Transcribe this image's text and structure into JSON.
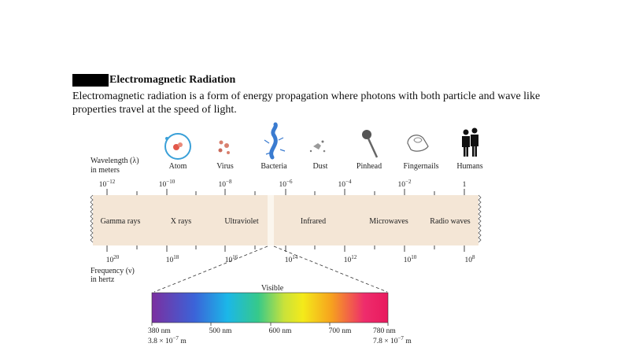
{
  "heading": "Electromagnetic Radiation",
  "description": "Electromagnetic radiation is a form of energy propagation where photons with both particle and wave like properties travel at the speed of light.",
  "wavelength_axis": {
    "label_line1": "Wavelength (λ)",
    "label_line2": "in meters",
    "objects": [
      "Atom",
      "Virus",
      "Bacteria",
      "Dust",
      "Pinhead",
      "Fingernails",
      "Humans"
    ],
    "ticks": [
      {
        "base": "10",
        "exp": "−12"
      },
      {
        "base": "10",
        "exp": "−10"
      },
      {
        "base": "10",
        "exp": "−8"
      },
      {
        "base": "10",
        "exp": "−6"
      },
      {
        "base": "10",
        "exp": "−4"
      },
      {
        "base": "10",
        "exp": "−2"
      },
      {
        "base": "1",
        "exp": ""
      }
    ]
  },
  "bands": [
    "Gamma rays",
    "X rays",
    "Ultraviolet",
    "Infrared",
    "Microwaves",
    "Radio waves"
  ],
  "frequency_axis": {
    "label_line1": "Frequency (ν)",
    "label_line2": "in hertz",
    "ticks": [
      {
        "base": "10",
        "exp": "20"
      },
      {
        "base": "10",
        "exp": "18"
      },
      {
        "base": "10",
        "exp": "16"
      },
      {
        "base": "10",
        "exp": "14"
      },
      {
        "base": "10",
        "exp": "12"
      },
      {
        "base": "10",
        "exp": "10"
      },
      {
        "base": "10",
        "exp": "8"
      }
    ]
  },
  "visible": {
    "label": "Visible",
    "ticks": [
      "380 nm",
      "500 nm",
      "600 nm",
      "700 nm",
      "780 nm"
    ],
    "left_sub": {
      "base": "3.8 × 10",
      "exp": "−7",
      "unit": " m"
    },
    "right_sub": {
      "base": "7.8 × 10",
      "exp": "−7",
      "unit": " m"
    }
  },
  "colors": {
    "band_fill": "#f4e6d6",
    "visible_gap": "#fbf6ee",
    "spectrum": [
      "#7b2fa0",
      "#3b63d8",
      "#1bb7e8",
      "#36c98a",
      "#c9e23a",
      "#f4ea1a",
      "#f6a21e",
      "#ee2c6c",
      "#e81a5e"
    ]
  },
  "icons": [
    "atom-icon",
    "virus-icon",
    "bacteria-icon",
    "dust-icon",
    "pinhead-icon",
    "fingernail-icon",
    "humans-icon"
  ]
}
